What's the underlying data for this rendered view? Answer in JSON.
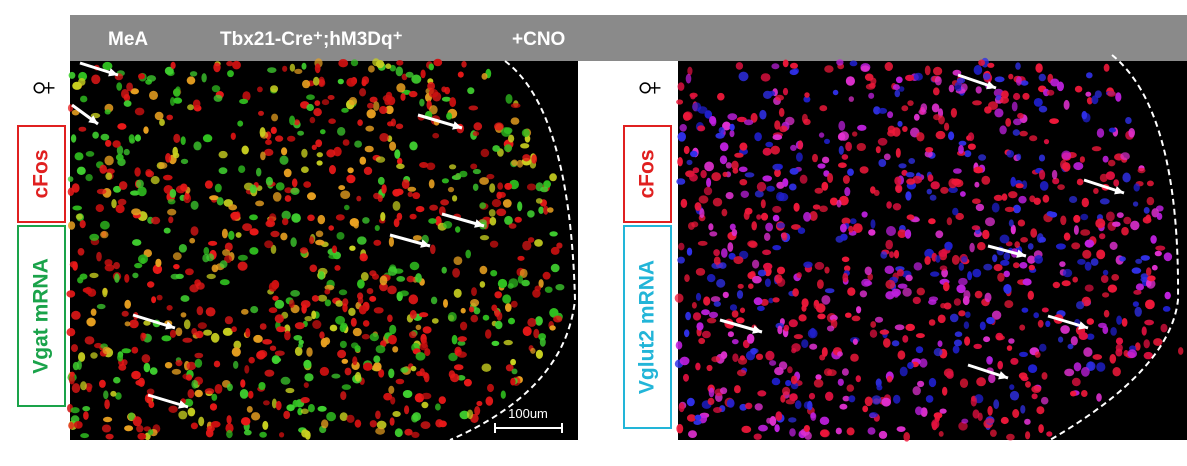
{
  "header": {
    "region": "MeA",
    "genotype": "Tbx21-Cre⁺;hM3Dq⁺",
    "treatment": "+CNO"
  },
  "panels": [
    {
      "sex": "♀",
      "label_top": "cFos",
      "label_bottom": "Vgat mRNA",
      "scale_bar": "100um"
    },
    {
      "sex": "♀",
      "label_top": "cFos",
      "label_bottom": "Vglut2 mRNA"
    }
  ]
}
